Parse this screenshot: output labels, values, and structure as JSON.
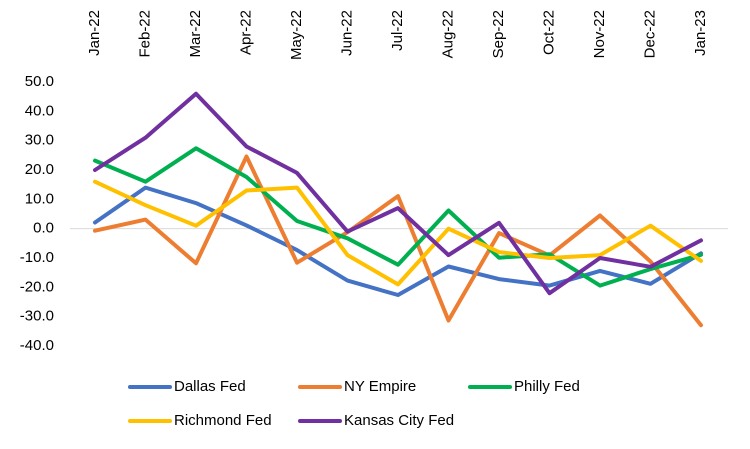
{
  "chart_data": {
    "type": "line",
    "categories": [
      "Jan-22",
      "Feb-22",
      "Mar-22",
      "Apr-22",
      "May-22",
      "Jun-22",
      "Jul-22",
      "Aug-22",
      "Sep-22",
      "Oct-22",
      "Nov-22",
      "Dec-22",
      "Jan-23"
    ],
    "ylim": [
      -40,
      50
    ],
    "yticks": [
      "50.0",
      "40.0",
      "30.0",
      "20.0",
      "10.0",
      "0.0",
      "-10.0",
      "-20.0",
      "-30.0",
      "-40.0"
    ],
    "grid": false,
    "legend_position": "bottom",
    "series": [
      {
        "name": "Dallas Fed",
        "color": "#4472C4",
        "values": [
          2.1,
          14.0,
          8.7,
          1.1,
          -7.3,
          -17.7,
          -22.6,
          -12.9,
          -17.2,
          -19.4,
          -14.4,
          -18.8,
          -8.4
        ]
      },
      {
        "name": "NY Empire",
        "color": "#ED7D31",
        "values": [
          -0.7,
          3.1,
          -11.8,
          24.6,
          -11.6,
          -1.2,
          11.1,
          -31.3,
          -1.5,
          -9.1,
          4.5,
          -11.2,
          -32.9
        ]
      },
      {
        "name": "Philly Fed",
        "color": "#00B050",
        "values": [
          23.2,
          16.0,
          27.4,
          17.6,
          2.6,
          -3.3,
          -12.3,
          6.2,
          -9.9,
          -8.7,
          -19.4,
          -13.8,
          -8.9
        ]
      },
      {
        "name": "Richmond Fed",
        "color": "#FFC000",
        "values": [
          16.0,
          8.0,
          1.0,
          13.0,
          14.0,
          -9.0,
          -19.0,
          0.0,
          -8.0,
          -10.0,
          -9.0,
          1.0,
          -11.0
        ]
      },
      {
        "name": "Kansas City Fed",
        "color": "#7030A0",
        "values": [
          20.0,
          31.0,
          46.0,
          28.0,
          19.0,
          -1.0,
          7.0,
          -9.0,
          2.0,
          -22.0,
          -10.0,
          -13.0,
          -4.0
        ]
      }
    ]
  }
}
